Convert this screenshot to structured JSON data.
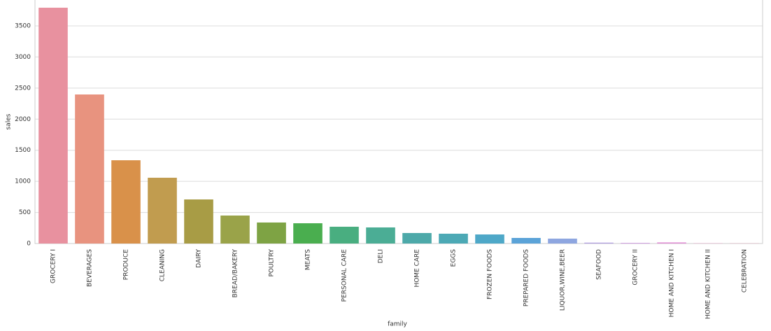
{
  "chart_data": {
    "type": "bar",
    "x_label": "family",
    "y_label": "sales",
    "categories": [
      "GROCERY I",
      "BEVERAGES",
      "PRODUCE",
      "CLEANING",
      "DAIRY",
      "BREAD/BAKERY",
      "POULTRY",
      "MEATS",
      "PERSONAL CARE",
      "DELI",
      "HOME CARE",
      "EGGS",
      "FROZEN FOODS",
      "PREPARED FOODS",
      "LIQUOR,WINE,BEER",
      "SEAFOOD",
      "GROCERY II",
      "HOME AND KITCHEN I",
      "HOME AND KITCHEN II",
      "CELEBRATION"
    ],
    "values": [
      3792,
      2397,
      1339,
      1058,
      709,
      450,
      338,
      326,
      270,
      259,
      169,
      158,
      146,
      90,
      79,
      14,
      10,
      18,
      4,
      3
    ],
    "colors": [
      "#e8919f",
      "#e8937f",
      "#d9914a",
      "#c19c4f",
      "#a89c45",
      "#9aa349",
      "#7ea344",
      "#4aae4f",
      "#49ae80",
      "#4bad95",
      "#4da9a9",
      "#4ca9b5",
      "#4ea8c8",
      "#5ba3d8",
      "#8ea6e0",
      "#b19ee0",
      "#cc96e1",
      "#e18fd5",
      "#e58fc0",
      "#e890ae"
    ],
    "ylim": [
      0,
      3916
    ],
    "yticks": [
      0,
      500,
      1000,
      1500,
      2000,
      2500,
      3000,
      3500
    ],
    "grid": true
  }
}
